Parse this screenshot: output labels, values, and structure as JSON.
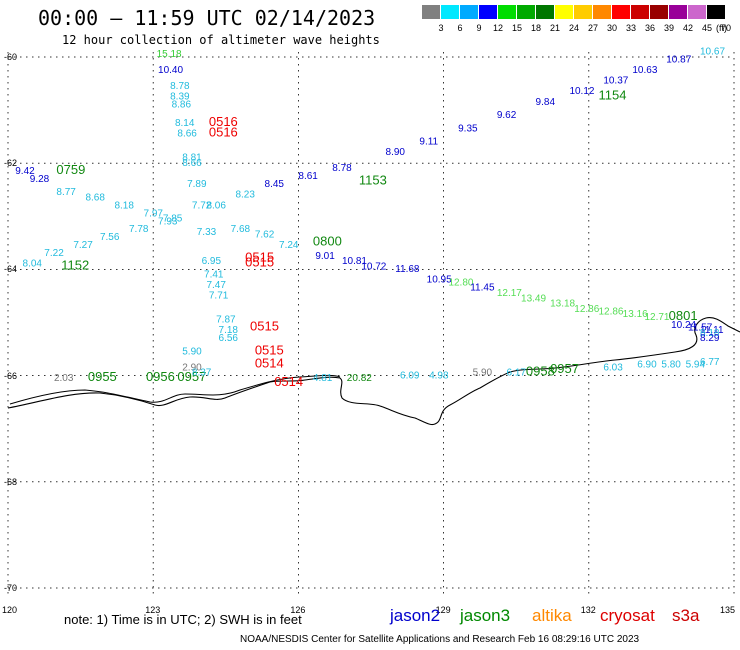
{
  "header": {
    "title": "00:00 – 11:59 UTC 02/14/2023",
    "subtitle": "12 hour collection of altimeter wave heights"
  },
  "colorbar": {
    "ticks": [
      "3",
      "6",
      "9",
      "12",
      "15",
      "18",
      "21",
      "24",
      "27",
      "30",
      "33",
      "36",
      "39",
      "42",
      "45",
      "70"
    ],
    "unit": "(ft)",
    "colors": [
      "#808080",
      "#00e8ff",
      "#00aaff",
      "#0000ff",
      "#00dd00",
      "#00aa00",
      "#007700",
      "#ffff00",
      "#ffcc00",
      "#ff8800",
      "#ff0000",
      "#cc0000",
      "#990000",
      "#990099",
      "#cc66cc",
      "#000000"
    ]
  },
  "map": {
    "lon_labels": [
      "120",
      "123",
      "126",
      "129",
      "132",
      "135"
    ],
    "lat_labels": [
      "-60",
      "-62",
      "-64",
      "-66",
      "-68",
      "-70"
    ]
  },
  "satellites": [
    {
      "name": "jason2",
      "color": "#0000cc"
    },
    {
      "name": "jason3",
      "color": "#008800"
    },
    {
      "name": "altika",
      "color": "#ff8800"
    },
    {
      "name": "cryosat",
      "color": "#dd0000"
    },
    {
      "name": "s3a",
      "color": "#cc0000"
    }
  ],
  "colors": {
    "jason2": "#0000cc",
    "jason3": "#118811",
    "altika_green": "#33cc33",
    "light_green": "#55dd55",
    "cyan": "#22bbdd",
    "red": "#ee0000",
    "gray": "#777777"
  },
  "observations": [
    {
      "t": "15.18",
      "c": "#33cc33",
      "lon": 123.07,
      "lat": -60.0
    },
    {
      "t": "10.40",
      "c": "#0000cc",
      "lon": 123.1,
      "lat": -60.3
    },
    {
      "t": "8.78",
      "c": "#22bbdd",
      "lon": 123.35,
      "lat": -60.6
    },
    {
      "t": "8.39",
      "c": "#22bbdd",
      "lon": 123.35,
      "lat": -60.8
    },
    {
      "t": "8.86",
      "c": "#22bbdd",
      "lon": 123.38,
      "lat": -60.95
    },
    {
      "t": "8.14",
      "c": "#22bbdd",
      "lon": 123.45,
      "lat": -61.3
    },
    {
      "t": "0516",
      "c": "#ee0000",
      "lon": 124.15,
      "lat": -61.3,
      "big": true
    },
    {
      "t": "0516",
      "c": "#ee0000",
      "lon": 124.15,
      "lat": -61.5,
      "big": true
    },
    {
      "t": "8.66",
      "c": "#22bbdd",
      "lon": 123.5,
      "lat": -61.5
    },
    {
      "t": "8.81",
      "c": "#22bbdd",
      "lon": 123.6,
      "lat": -61.95
    },
    {
      "t": "8.66",
      "c": "#22bbdd",
      "lon": 123.6,
      "lat": -62.05
    },
    {
      "t": "7.89",
      "c": "#22bbdd",
      "lon": 123.7,
      "lat": -62.45
    },
    {
      "t": "7.72",
      "c": "#22bbdd",
      "lon": 123.8,
      "lat": -62.85
    },
    {
      "t": "7.33",
      "c": "#22bbdd",
      "lon": 123.9,
      "lat": -63.35
    },
    {
      "t": "6.95",
      "c": "#22bbdd",
      "lon": 124.0,
      "lat": -63.9
    },
    {
      "t": "0515",
      "c": "#ee0000",
      "lon": 124.9,
      "lat": -63.85,
      "big": true
    },
    {
      "t": "0515",
      "c": "#ee0000",
      "lon": 124.9,
      "lat": -63.95,
      "big": true
    },
    {
      "t": "7.41",
      "c": "#22bbdd",
      "lon": 124.05,
      "lat": -64.15
    },
    {
      "t": "7.47",
      "c": "#22bbdd",
      "lon": 124.1,
      "lat": -64.35
    },
    {
      "t": "7.71",
      "c": "#22bbdd",
      "lon": 124.15,
      "lat": -64.55
    },
    {
      "t": "7.87",
      "c": "#22bbdd",
      "lon": 124.3,
      "lat": -65.0
    },
    {
      "t": "7.18",
      "c": "#22bbdd",
      "lon": 124.35,
      "lat": -65.2
    },
    {
      "t": "6.56",
      "c": "#22bbdd",
      "lon": 124.35,
      "lat": -65.35
    },
    {
      "t": "0515",
      "c": "#ee0000",
      "lon": 125.0,
      "lat": -65.15,
      "big": true
    },
    {
      "t": "5.90",
      "c": "#22bbdd",
      "lon": 123.6,
      "lat": -65.6
    },
    {
      "t": "0515",
      "c": "#ee0000",
      "lon": 125.1,
      "lat": -65.6,
      "big": true
    },
    {
      "t": "0514",
      "c": "#ee0000",
      "lon": 125.1,
      "lat": -65.85,
      "big": true
    },
    {
      "t": "2.90",
      "c": "#777777",
      "lon": 123.6,
      "lat": -65.9
    },
    {
      "t": "0514",
      "c": "#ee0000",
      "lon": 125.5,
      "lat": -66.2,
      "big": true
    },
    {
      "t": "2.03",
      "c": "#777777",
      "lon": 120.95,
      "lat": -66.1
    },
    {
      "t": "0955",
      "c": "#118811",
      "lon": 121.65,
      "lat": -66.1,
      "big": true
    },
    {
      "t": "0956",
      "c": "#118811",
      "lon": 122.85,
      "lat": -66.1,
      "big": true
    },
    {
      "t": "0957",
      "c": "#118811",
      "lon": 123.5,
      "lat": -66.1,
      "big": true
    },
    {
      "t": "9.42",
      "c": "#0000cc",
      "lon": 120.15,
      "lat": -62.2
    },
    {
      "t": "0759",
      "c": "#118811",
      "lon": 121.0,
      "lat": -62.2,
      "big": true
    },
    {
      "t": "9.28",
      "c": "#0000cc",
      "lon": 120.45,
      "lat": -62.35
    },
    {
      "t": "8.77",
      "c": "#22bbdd",
      "lon": 121.0,
      "lat": -62.6
    },
    {
      "t": "8.68",
      "c": "#22bbdd",
      "lon": 121.6,
      "lat": -62.7
    },
    {
      "t": "8.18",
      "c": "#22bbdd",
      "lon": 122.2,
      "lat": -62.85
    },
    {
      "t": "7.97",
      "c": "#22bbdd",
      "lon": 122.8,
      "lat": -63.0
    },
    {
      "t": "7.85",
      "c": "#22bbdd",
      "lon": 123.2,
      "lat": -63.1
    },
    {
      "t": "8.04",
      "c": "#22bbdd",
      "lon": 120.3,
      "lat": -63.95
    },
    {
      "t": "1152",
      "c": "#118811",
      "lon": 121.1,
      "lat": -64.0,
      "big": true
    },
    {
      "t": "7.22",
      "c": "#22bbdd",
      "lon": 120.75,
      "lat": -63.75
    },
    {
      "t": "7.27",
      "c": "#22bbdd",
      "lon": 121.35,
      "lat": -63.6
    },
    {
      "t": "7.56",
      "c": "#22bbdd",
      "lon": 121.9,
      "lat": -63.45
    },
    {
      "t": "7.78",
      "c": "#22bbdd",
      "lon": 122.5,
      "lat": -63.3
    },
    {
      "t": "7.93",
      "c": "#22bbdd",
      "lon": 123.1,
      "lat": -63.15
    },
    {
      "t": "8.06",
      "c": "#22bbdd",
      "lon": 124.1,
      "lat": -62.85
    },
    {
      "t": "8.23",
      "c": "#22bbdd",
      "lon": 124.7,
      "lat": -62.65
    },
    {
      "t": "8.45",
      "c": "#0000cc",
      "lon": 125.3,
      "lat": -62.45
    },
    {
      "t": "8.61",
      "c": "#0000cc",
      "lon": 126.0,
      "lat": -62.3
    },
    {
      "t": "8.78",
      "c": "#0000cc",
      "lon": 126.7,
      "lat": -62.15
    },
    {
      "t": "1153",
      "c": "#118811",
      "lon": 127.25,
      "lat": -62.4,
      "big": true
    },
    {
      "t": "8.90",
      "c": "#0000cc",
      "lon": 127.8,
      "lat": -61.85
    },
    {
      "t": "9.11",
      "c": "#0000cc",
      "lon": 128.5,
      "lat": -61.65
    },
    {
      "t": "9.35",
      "c": "#0000cc",
      "lon": 129.3,
      "lat": -61.4
    },
    {
      "t": "9.62",
      "c": "#0000cc",
      "lon": 130.1,
      "lat": -61.15
    },
    {
      "t": "9.84",
      "c": "#0000cc",
      "lon": 130.9,
      "lat": -60.9
    },
    {
      "t": "10.12",
      "c": "#0000cc",
      "lon": 131.6,
      "lat": -60.7
    },
    {
      "t": "10.37",
      "c": "#0000cc",
      "lon": 132.3,
      "lat": -60.5
    },
    {
      "t": "1154",
      "c": "#118811",
      "lon": 132.2,
      "lat": -60.8,
      "big": true
    },
    {
      "t": "10.63",
      "c": "#0000cc",
      "lon": 132.9,
      "lat": -60.3
    },
    {
      "t": "10.87",
      "c": "#0000cc",
      "lon": 133.6,
      "lat": -60.1
    },
    {
      "t": "10.67",
      "c": "#22bbdd",
      "lon": 134.5,
      "lat": -59.95
    },
    {
      "t": "7.68",
      "c": "#22bbdd",
      "lon": 124.6,
      "lat": -63.3
    },
    {
      "t": "7.62",
      "c": "#22bbdd",
      "lon": 125.1,
      "lat": -63.4
    },
    {
      "t": "7.24",
      "c": "#22bbdd",
      "lon": 125.6,
      "lat": -63.6
    },
    {
      "t": "0800",
      "c": "#118811",
      "lon": 126.3,
      "lat": -63.55,
      "big": true
    },
    {
      "t": "9.01",
      "c": "#0000cc",
      "lon": 126.35,
      "lat": -63.8
    },
    {
      "t": "10.81",
      "c": "#0000cc",
      "lon": 126.9,
      "lat": -63.9
    },
    {
      "t": "10.72",
      "c": "#0000cc",
      "lon": 127.3,
      "lat": -64.0
    },
    {
      "t": "11.68",
      "c": "#0000cc",
      "lon": 128.0,
      "lat": -64.05
    },
    {
      "t": "10.95",
      "c": "#0000cc",
      "lon": 128.65,
      "lat": -64.25
    },
    {
      "t": "12.80",
      "c": "#55dd55",
      "lon": 129.1,
      "lat": -64.3
    },
    {
      "t": "11.45",
      "c": "#0000cc",
      "lon": 129.55,
      "lat": -64.4
    },
    {
      "t": "12.17",
      "c": "#55dd55",
      "lon": 130.1,
      "lat": -64.5
    },
    {
      "t": "13.49",
      "c": "#55dd55",
      "lon": 130.6,
      "lat": -64.6
    },
    {
      "t": "13.18",
      "c": "#55dd55",
      "lon": 131.2,
      "lat": -64.7
    },
    {
      "t": "12.86",
      "c": "#55dd55",
      "lon": 131.7,
      "lat": -64.8
    },
    {
      "t": "12.86",
      "c": "#55dd55",
      "lon": 132.2,
      "lat": -64.85
    },
    {
      "t": "13.16",
      "c": "#55dd55",
      "lon": 132.7,
      "lat": -64.9
    },
    {
      "t": "12.71",
      "c": "#55dd55",
      "lon": 133.15,
      "lat": -64.95
    },
    {
      "t": "0801",
      "c": "#118811",
      "lon": 133.65,
      "lat": -64.95,
      "big": true
    },
    {
      "t": "10.24",
      "c": "#0000cc",
      "lon": 133.7,
      "lat": -65.1
    },
    {
      "t": "11.57",
      "c": "#0000cc",
      "lon": 134.05,
      "lat": -65.15
    },
    {
      "t": "11.11",
      "c": "#0000cc",
      "lon": 134.45,
      "lat": -65.2
    },
    {
      "t": "8.18",
      "c": "#22bbdd",
      "lon": 134.85,
      "lat": -65.25
    },
    {
      "t": "8.29",
      "c": "#0000cc",
      "lon": 135.2,
      "lat": -65.35
    },
    {
      "t": "6.90",
      "c": "#22bbdd",
      "lon": 133.0,
      "lat": -65.85
    },
    {
      "t": "5.80",
      "c": "#22bbdd",
      "lon": 133.5,
      "lat": -65.85
    },
    {
      "t": "5.94",
      "c": "#22bbdd",
      "lon": 134.0,
      "lat": -65.85
    },
    {
      "t": "6.77",
      "c": "#22bbdd",
      "lon": 134.9,
      "lat": -65.8
    },
    {
      "t": "6.03",
      "c": "#22bbdd",
      "lon": 132.3,
      "lat": -65.9
    },
    {
      "t": "0958",
      "c": "#118811",
      "lon": 130.7,
      "lat": -66.0,
      "big": true
    },
    {
      "t": "0957",
      "c": "#118811",
      "lon": 131.2,
      "lat": -65.95,
      "big": true
    },
    {
      "t": "6.17",
      "c": "#22bbdd",
      "lon": 130.3,
      "lat": -66.0
    },
    {
      "t": "5.90",
      "c": "#777777",
      "lon": 129.6,
      "lat": -66.0
    },
    {
      "t": "20.82",
      "c": "#118811",
      "lon": 127.0,
      "lat": -66.1
    },
    {
      "t": "4.81",
      "c": "#22bbdd",
      "lon": 126.3,
      "lat": -66.1
    },
    {
      "t": "6.09",
      "c": "#22bbdd",
      "lon": 128.1,
      "lat": -66.05
    },
    {
      "t": "4.98",
      "c": "#22bbdd",
      "lon": 128.7,
      "lat": -66.05
    },
    {
      "t": "8.37",
      "c": "#22bbdd",
      "lon": 123.8,
      "lat": -66.0
    }
  ],
  "footer": {
    "note": "note:  1) Time is in UTC;  2) SWH is in feet",
    "credit": "NOAA/NESDIS Center for Satellite Applications and Research    Feb 16 08:29:16 UTC 2023"
  }
}
